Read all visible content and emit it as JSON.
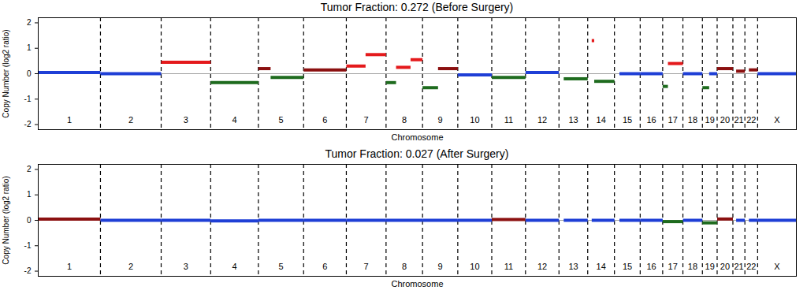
{
  "chart_data": [
    {
      "type": "segments",
      "title": "Tumor Fraction: 0.272 (Before Surgery)",
      "x_label": "Chromosome",
      "y_label": "Copy Number (log2 ratio)",
      "xlim": [
        0,
        3034
      ],
      "ylim": [
        -2.2,
        2.2
      ],
      "yticks": [
        -2,
        -1,
        0,
        1,
        2
      ],
      "tick_labels": "y",
      "reference_line": 0,
      "chromosomes": [
        {
          "name": "1",
          "start": 0,
          "end": 249
        },
        {
          "name": "2",
          "start": 249,
          "end": 492
        },
        {
          "name": "3",
          "start": 492,
          "end": 690
        },
        {
          "name": "4",
          "start": 690,
          "end": 881
        },
        {
          "name": "5",
          "start": 881,
          "end": 1062
        },
        {
          "name": "6",
          "start": 1062,
          "end": 1233
        },
        {
          "name": "7",
          "start": 1233,
          "end": 1392
        },
        {
          "name": "8",
          "start": 1392,
          "end": 1538
        },
        {
          "name": "9",
          "start": 1538,
          "end": 1679
        },
        {
          "name": "10",
          "start": 1679,
          "end": 1815
        },
        {
          "name": "11",
          "start": 1815,
          "end": 1950
        },
        {
          "name": "12",
          "start": 1950,
          "end": 2084
        },
        {
          "name": "13",
          "start": 2084,
          "end": 2199
        },
        {
          "name": "14",
          "start": 2199,
          "end": 2306
        },
        {
          "name": "15",
          "start": 2306,
          "end": 2409
        },
        {
          "name": "16",
          "start": 2409,
          "end": 2499
        },
        {
          "name": "17",
          "start": 2499,
          "end": 2580
        },
        {
          "name": "18",
          "start": 2580,
          "end": 2658
        },
        {
          "name": "19",
          "start": 2658,
          "end": 2717
        },
        {
          "name": "20",
          "start": 2717,
          "end": 2780
        },
        {
          "name": "21",
          "start": 2780,
          "end": 2828
        },
        {
          "name": "22",
          "start": 2828,
          "end": 2879
        },
        {
          "name": "X",
          "start": 2879,
          "end": 3034
        }
      ],
      "segments": [
        {
          "start": 0,
          "end": 249,
          "value": 0.05,
          "color": "#1f3fd6"
        },
        {
          "start": 249,
          "end": 492,
          "value": 0.0,
          "color": "#1f3fd6"
        },
        {
          "start": 492,
          "end": 690,
          "value": 0.45,
          "color": "#e41a1c"
        },
        {
          "start": 690,
          "end": 881,
          "value": -0.35,
          "color": "#1e6b1e"
        },
        {
          "start": 881,
          "end": 930,
          "value": 0.2,
          "color": "#8b1010"
        },
        {
          "start": 930,
          "end": 1062,
          "value": -0.15,
          "color": "#1e6b1e"
        },
        {
          "start": 1062,
          "end": 1233,
          "value": 0.15,
          "color": "#8b1010"
        },
        {
          "start": 1233,
          "end": 1310,
          "value": 0.3,
          "color": "#e41a1c"
        },
        {
          "start": 1310,
          "end": 1392,
          "value": 0.75,
          "color": "#e41a1c"
        },
        {
          "start": 1392,
          "end": 1432,
          "value": -0.35,
          "color": "#1e6b1e"
        },
        {
          "start": 1432,
          "end": 1490,
          "value": 0.25,
          "color": "#e41a1c"
        },
        {
          "start": 1490,
          "end": 1538,
          "value": 0.55,
          "color": "#e41a1c"
        },
        {
          "start": 1538,
          "end": 1600,
          "value": -0.55,
          "color": "#1e6b1e"
        },
        {
          "start": 1600,
          "end": 1679,
          "value": 0.2,
          "color": "#8b1010"
        },
        {
          "start": 1679,
          "end": 1815,
          "value": -0.05,
          "color": "#1f3fd6"
        },
        {
          "start": 1815,
          "end": 1950,
          "value": -0.15,
          "color": "#1e6b1e"
        },
        {
          "start": 1950,
          "end": 2084,
          "value": 0.05,
          "color": "#1f3fd6"
        },
        {
          "start": 2103,
          "end": 2199,
          "value": -0.2,
          "color": "#1e6b1e"
        },
        {
          "start": 2215,
          "end": 2225,
          "value": 1.3,
          "color": "#e41a1c"
        },
        {
          "start": 2225,
          "end": 2306,
          "value": -0.3,
          "color": "#1e6b1e"
        },
        {
          "start": 2326,
          "end": 2409,
          "value": 0.0,
          "color": "#1f3fd6"
        },
        {
          "start": 2409,
          "end": 2499,
          "value": 0.0,
          "color": "#1f3fd6"
        },
        {
          "start": 2499,
          "end": 2520,
          "value": -0.5,
          "color": "#1e6b1e"
        },
        {
          "start": 2520,
          "end": 2580,
          "value": 0.4,
          "color": "#e41a1c"
        },
        {
          "start": 2580,
          "end": 2658,
          "value": 0.0,
          "color": "#1f3fd6"
        },
        {
          "start": 2658,
          "end": 2685,
          "value": -0.55,
          "color": "#1e6b1e"
        },
        {
          "start": 2685,
          "end": 2717,
          "value": 0.0,
          "color": "#1f3fd6"
        },
        {
          "start": 2717,
          "end": 2780,
          "value": 0.2,
          "color": "#8b1010"
        },
        {
          "start": 2793,
          "end": 2828,
          "value": 0.1,
          "color": "#8b1010"
        },
        {
          "start": 2844,
          "end": 2879,
          "value": 0.15,
          "color": "#8b1010"
        },
        {
          "start": 2879,
          "end": 3034,
          "value": 0.0,
          "color": "#1f3fd6"
        }
      ]
    },
    {
      "type": "segments",
      "title": "Tumor Fraction: 0.027 (After Surgery)",
      "x_label": "Chromosome",
      "y_label": "Copy Number (log2 ratio)",
      "xlim": [
        0,
        3034
      ],
      "ylim": [
        -2.2,
        2.2
      ],
      "yticks": [
        -2,
        -1,
        0,
        1,
        2
      ],
      "tick_labels": "y",
      "reference_line": 0,
      "chromosomes": [
        {
          "name": "1",
          "start": 0,
          "end": 249
        },
        {
          "name": "2",
          "start": 249,
          "end": 492
        },
        {
          "name": "3",
          "start": 492,
          "end": 690
        },
        {
          "name": "4",
          "start": 690,
          "end": 881
        },
        {
          "name": "5",
          "start": 881,
          "end": 1062
        },
        {
          "name": "6",
          "start": 1062,
          "end": 1233
        },
        {
          "name": "7",
          "start": 1233,
          "end": 1392
        },
        {
          "name": "8",
          "start": 1392,
          "end": 1538
        },
        {
          "name": "9",
          "start": 1538,
          "end": 1679
        },
        {
          "name": "10",
          "start": 1679,
          "end": 1815
        },
        {
          "name": "11",
          "start": 1815,
          "end": 1950
        },
        {
          "name": "12",
          "start": 1950,
          "end": 2084
        },
        {
          "name": "13",
          "start": 2084,
          "end": 2199
        },
        {
          "name": "14",
          "start": 2199,
          "end": 2306
        },
        {
          "name": "15",
          "start": 2306,
          "end": 2409
        },
        {
          "name": "16",
          "start": 2409,
          "end": 2499
        },
        {
          "name": "17",
          "start": 2499,
          "end": 2580
        },
        {
          "name": "18",
          "start": 2580,
          "end": 2658
        },
        {
          "name": "19",
          "start": 2658,
          "end": 2717
        },
        {
          "name": "20",
          "start": 2717,
          "end": 2780
        },
        {
          "name": "21",
          "start": 2780,
          "end": 2828
        },
        {
          "name": "22",
          "start": 2828,
          "end": 2879
        },
        {
          "name": "X",
          "start": 2879,
          "end": 3034
        }
      ],
      "segments": [
        {
          "start": 0,
          "end": 249,
          "value": 0.05,
          "color": "#8b1010"
        },
        {
          "start": 249,
          "end": 492,
          "value": 0.0,
          "color": "#1f3fd6"
        },
        {
          "start": 492,
          "end": 690,
          "value": 0.0,
          "color": "#1f3fd6"
        },
        {
          "start": 690,
          "end": 881,
          "value": -0.02,
          "color": "#1f3fd6"
        },
        {
          "start": 881,
          "end": 1062,
          "value": 0.0,
          "color": "#1f3fd6"
        },
        {
          "start": 1062,
          "end": 1233,
          "value": 0.0,
          "color": "#1f3fd6"
        },
        {
          "start": 1233,
          "end": 1392,
          "value": 0.0,
          "color": "#1f3fd6"
        },
        {
          "start": 1392,
          "end": 1538,
          "value": 0.0,
          "color": "#1f3fd6"
        },
        {
          "start": 1538,
          "end": 1679,
          "value": 0.0,
          "color": "#1f3fd6"
        },
        {
          "start": 1679,
          "end": 1815,
          "value": 0.0,
          "color": "#1f3fd6"
        },
        {
          "start": 1815,
          "end": 1950,
          "value": 0.03,
          "color": "#8b1010"
        },
        {
          "start": 1950,
          "end": 2084,
          "value": 0.0,
          "color": "#1f3fd6"
        },
        {
          "start": 2103,
          "end": 2199,
          "value": 0.0,
          "color": "#1f3fd6"
        },
        {
          "start": 2215,
          "end": 2306,
          "value": 0.0,
          "color": "#1f3fd6"
        },
        {
          "start": 2326,
          "end": 2409,
          "value": 0.0,
          "color": "#1f3fd6"
        },
        {
          "start": 2409,
          "end": 2499,
          "value": 0.0,
          "color": "#1f3fd6"
        },
        {
          "start": 2499,
          "end": 2580,
          "value": -0.05,
          "color": "#1e6b1e"
        },
        {
          "start": 2580,
          "end": 2658,
          "value": 0.0,
          "color": "#1f3fd6"
        },
        {
          "start": 2658,
          "end": 2717,
          "value": -0.1,
          "color": "#1e6b1e"
        },
        {
          "start": 2717,
          "end": 2780,
          "value": 0.05,
          "color": "#8b1010"
        },
        {
          "start": 2793,
          "end": 2828,
          "value": 0.0,
          "color": "#1f3fd6"
        },
        {
          "start": 2844,
          "end": 2879,
          "value": 0.0,
          "color": "#1f3fd6"
        },
        {
          "start": 2879,
          "end": 3034,
          "value": 0.0,
          "color": "#1f3fd6"
        }
      ]
    }
  ]
}
